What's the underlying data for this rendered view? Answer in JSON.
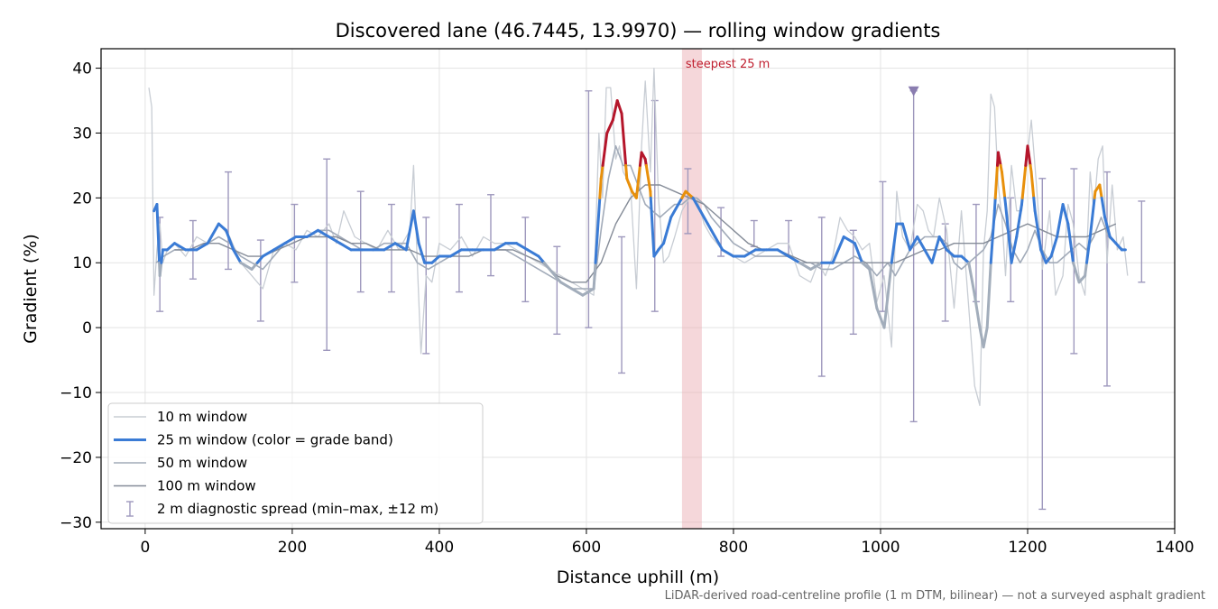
{
  "chart_data": {
    "type": "line",
    "title": "Discovered lane (46.7445, 13.9970) — rolling window gradients",
    "xlabel": "Distance uphill (m)",
    "ylabel": "Gradient (%)",
    "xlim": [
      -60,
      1400
    ],
    "ylim": [
      -31,
      43
    ],
    "xticks": [
      0,
      200,
      400,
      600,
      800,
      1000,
      1200,
      1400
    ],
    "yticks": [
      -30,
      -20,
      -10,
      0,
      10,
      20,
      30,
      40
    ],
    "grid": true,
    "legend_position": "lower-left",
    "footnote": "LiDAR-derived road-centreline profile (1 m DTM, bilinear) — not a surveyed asphalt gradient",
    "steepest_span": {
      "label": "steepest 25 m",
      "x_start": 730,
      "x_end": 757,
      "color": "#e8a7ad"
    },
    "marker": {
      "x": 1045,
      "y": 36.5,
      "color": "#8a7db0"
    },
    "legend": [
      {
        "label": "10 m window",
        "kind": "line",
        "color": "#c8cdd4"
      },
      {
        "label": "25 m window (color = grade band)",
        "kind": "line-bold",
        "color": "#3a7bd5"
      },
      {
        "label": "50 m window",
        "kind": "line",
        "color": "#a2abb9"
      },
      {
        "label": "100 m window",
        "kind": "line",
        "color": "#858c98"
      },
      {
        "label": "2 m diagnostic spread (min–max, ±12 m)",
        "kind": "errorbar",
        "color": "#9e98bd"
      }
    ],
    "grade_bands": [
      {
        "min": -100,
        "max": 10,
        "color": "#a2adbb"
      },
      {
        "min": 10,
        "max": 20,
        "color": "#3a7bd5"
      },
      {
        "min": 20,
        "max": 25,
        "color": "#e8900b"
      },
      {
        "min": 25,
        "max": 100,
        "color": "#b5162b"
      }
    ],
    "series": [
      {
        "name": "10 m window",
        "color": "#c8cdd4",
        "width": 1.3,
        "x": [
          5,
          9,
          12,
          16,
          20,
          24,
          30,
          40,
          55,
          70,
          85,
          100,
          115,
          130,
          145,
          160,
          175,
          190,
          205,
          220,
          235,
          250,
          260,
          270,
          285,
          300,
          315,
          330,
          345,
          360,
          365,
          370,
          375,
          382,
          390,
          400,
          415,
          430,
          445,
          460,
          475,
          490,
          505,
          520,
          535,
          550,
          565,
          580,
          595,
          610,
          617,
          622,
          627,
          633,
          640,
          645,
          650,
          660,
          668,
          675,
          680,
          687,
          692,
          698,
          705,
          712,
          720,
          730,
          740,
          750,
          760,
          770,
          785,
          800,
          815,
          830,
          845,
          860,
          875,
          890,
          905,
          915,
          925,
          935,
          945,
          955,
          965,
          975,
          985,
          995,
          1005,
          1015,
          1022,
          1030,
          1040,
          1050,
          1058,
          1065,
          1072,
          1080,
          1090,
          1100,
          1110,
          1120,
          1128,
          1135,
          1140,
          1145,
          1150,
          1155,
          1160,
          1165,
          1170,
          1178,
          1185,
          1192,
          1200,
          1205,
          1212,
          1220,
          1230,
          1238,
          1248,
          1255,
          1262,
          1270,
          1278,
          1285,
          1290,
          1296,
          1302,
          1308,
          1315,
          1322,
          1330,
          1336
        ],
        "y": [
          37,
          34,
          5,
          12,
          16,
          10,
          12,
          13,
          11,
          14,
          13,
          16,
          14,
          10,
          8,
          6,
          12,
          13,
          12,
          15,
          14,
          16,
          13,
          18,
          14,
          13,
          12,
          15,
          12,
          15,
          25,
          10,
          -4,
          8,
          7,
          13,
          12,
          14,
          11,
          14,
          13,
          13,
          12,
          11,
          10,
          9,
          8,
          7,
          6,
          5,
          30,
          20,
          37,
          37,
          26,
          28,
          24,
          22,
          6,
          28,
          38,
          24,
          40,
          20,
          10,
          11,
          14,
          18,
          20,
          20,
          16,
          14,
          12,
          11,
          10,
          11,
          12,
          13,
          13,
          8,
          7,
          10,
          8,
          11,
          17,
          15,
          14,
          12,
          13,
          4,
          8,
          -3,
          21,
          14,
          12,
          19,
          18,
          15,
          14,
          20,
          15,
          3,
          18,
          3,
          -9,
          -12,
          12,
          18,
          36,
          34,
          22,
          17,
          8,
          25,
          18,
          18,
          27,
          32,
          22,
          9,
          18,
          5,
          8,
          19,
          16,
          8,
          5,
          24,
          18,
          26,
          28,
          10,
          22,
          12,
          14,
          8
        ]
      },
      {
        "name": "50 m window",
        "color": "#a2abb9",
        "width": 1.6,
        "x": [
          15,
          25,
          40,
          55,
          70,
          85,
          100,
          115,
          130,
          145,
          160,
          175,
          190,
          205,
          220,
          235,
          250,
          265,
          280,
          295,
          310,
          325,
          340,
          355,
          370,
          385,
          400,
          415,
          430,
          445,
          460,
          475,
          490,
          505,
          520,
          535,
          550,
          565,
          580,
          595,
          610,
          620,
          630,
          640,
          650,
          660,
          670,
          680,
          690,
          700,
          710,
          720,
          730,
          740,
          750,
          760,
          770,
          785,
          800,
          815,
          830,
          845,
          860,
          875,
          890,
          905,
          920,
          935,
          950,
          965,
          980,
          995,
          1010,
          1020,
          1030,
          1040,
          1050,
          1060,
          1070,
          1080,
          1090,
          1100,
          1110,
          1120,
          1130,
          1140,
          1150,
          1160,
          1170,
          1180,
          1190,
          1200,
          1210,
          1220,
          1230,
          1240,
          1250,
          1260,
          1270,
          1280,
          1290,
          1300,
          1310,
          1320,
          1330
        ],
        "y": [
          10,
          11,
          12,
          12,
          12,
          13,
          14,
          13,
          11,
          10,
          9,
          11,
          13,
          14,
          14,
          15,
          15,
          14,
          13,
          12,
          12,
          13,
          13,
          13,
          10,
          9,
          10,
          11,
          12,
          12,
          12,
          12,
          12,
          11,
          10,
          9,
          8,
          7,
          6,
          6,
          6,
          15,
          23,
          28,
          25,
          25,
          22,
          19,
          18,
          17,
          18,
          19,
          19,
          20,
          20,
          19,
          17,
          15,
          13,
          12,
          11,
          11,
          11,
          11,
          10,
          10,
          9,
          9,
          10,
          11,
          10,
          8,
          10,
          8,
          10,
          12,
          13,
          14,
          14,
          14,
          13,
          10,
          9,
          10,
          11,
          12,
          14,
          19,
          16,
          12,
          10,
          12,
          15,
          12,
          10,
          10,
          11,
          12,
          13,
          12,
          14,
          17,
          14,
          13,
          12
        ]
      },
      {
        "name": "100 m window",
        "color": "#858c98",
        "width": 1.4,
        "x": [
          40,
          60,
          80,
          100,
          120,
          140,
          160,
          180,
          200,
          220,
          240,
          260,
          280,
          300,
          320,
          340,
          360,
          380,
          400,
          420,
          440,
          460,
          480,
          500,
          520,
          540,
          560,
          580,
          600,
          620,
          640,
          660,
          680,
          700,
          720,
          740,
          760,
          780,
          800,
          820,
          840,
          860,
          880,
          900,
          920,
          940,
          960,
          980,
          1000,
          1020,
          1040,
          1060,
          1080,
          1100,
          1120,
          1140,
          1160,
          1180,
          1200,
          1220,
          1240,
          1260,
          1280,
          1300,
          1320
        ],
        "y": [
          12,
          12,
          13,
          13,
          12,
          11,
          11,
          12,
          13,
          14,
          14,
          14,
          13,
          13,
          12,
          12,
          12,
          11,
          11,
          11,
          11,
          12,
          12,
          12,
          11,
          10,
          8,
          7,
          7,
          10,
          16,
          20,
          22,
          22,
          21,
          20,
          19,
          17,
          15,
          13,
          12,
          12,
          11,
          10,
          10,
          10,
          10,
          10,
          10,
          10,
          11,
          12,
          12,
          13,
          13,
          13,
          14,
          15,
          16,
          15,
          14,
          14,
          14,
          15,
          16
        ]
      },
      {
        "name": "25 m window (color = grade band)",
        "color": "#3a7bd5",
        "width": 3,
        "banded": true,
        "x": [
          12,
          16,
          20,
          24,
          30,
          40,
          55,
          70,
          85,
          100,
          110,
          120,
          130,
          145,
          160,
          175,
          190,
          205,
          220,
          235,
          250,
          265,
          280,
          295,
          310,
          325,
          340,
          355,
          365,
          372,
          380,
          390,
          400,
          415,
          430,
          445,
          460,
          475,
          490,
          505,
          520,
          535,
          550,
          565,
          580,
          595,
          610,
          620,
          628,
          636,
          642,
          648,
          655,
          662,
          668,
          675,
          680,
          687,
          692,
          698,
          705,
          715,
          725,
          735,
          745,
          755,
          765,
          775,
          785,
          800,
          815,
          830,
          845,
          860,
          875,
          890,
          905,
          920,
          935,
          950,
          965,
          975,
          985,
          995,
          1005,
          1015,
          1022,
          1030,
          1040,
          1050,
          1060,
          1070,
          1080,
          1090,
          1100,
          1110,
          1120,
          1128,
          1135,
          1140,
          1145,
          1150,
          1155,
          1160,
          1165,
          1170,
          1178,
          1185,
          1192,
          1200,
          1205,
          1210,
          1218,
          1225,
          1232,
          1240,
          1248,
          1255,
          1262,
          1270,
          1278,
          1285,
          1292,
          1298,
          1305,
          1312,
          1320,
          1328,
          1333
        ],
        "y": [
          18,
          19,
          8,
          12,
          12,
          13,
          12,
          12,
          13,
          16,
          15,
          12,
          10,
          9,
          11,
          12,
          13,
          14,
          14,
          15,
          14,
          13,
          12,
          12,
          12,
          12,
          13,
          12,
          18,
          13,
          10,
          10,
          11,
          11,
          12,
          12,
          12,
          12,
          13,
          13,
          12,
          11,
          9,
          7,
          6,
          5,
          6,
          23,
          30,
          32,
          35,
          33,
          23,
          21,
          20,
          27,
          26,
          21,
          11,
          12,
          13,
          17,
          19,
          21,
          20,
          18,
          16,
          14,
          12,
          11,
          11,
          12,
          12,
          12,
          11,
          10,
          9,
          10,
          10,
          14,
          13,
          10,
          9,
          3,
          0,
          10,
          16,
          16,
          12,
          14,
          12,
          10,
          14,
          12,
          11,
          11,
          10,
          5,
          0,
          -3,
          0,
          10,
          18,
          27,
          24,
          19,
          10,
          14,
          19,
          28,
          24,
          18,
          12,
          10,
          11,
          14,
          19,
          16,
          10,
          7,
          8,
          14,
          21,
          22,
          17,
          14,
          13,
          12,
          12
        ]
      }
    ],
    "error_bars": [
      {
        "x": 20,
        "min": 2.5,
        "max": 17
      },
      {
        "x": 65,
        "min": 7.5,
        "max": 16.5
      },
      {
        "x": 113,
        "min": 9,
        "max": 24
      },
      {
        "x": 157,
        "min": 1,
        "max": 13.5
      },
      {
        "x": 203,
        "min": 7,
        "max": 19
      },
      {
        "x": 247,
        "min": -3.5,
        "max": 26
      },
      {
        "x": 293,
        "min": 5.5,
        "max": 21
      },
      {
        "x": 335,
        "min": 5.5,
        "max": 19
      },
      {
        "x": 382,
        "min": -4,
        "max": 17
      },
      {
        "x": 427,
        "min": 5.5,
        "max": 19
      },
      {
        "x": 470,
        "min": 8,
        "max": 20.5
      },
      {
        "x": 517,
        "min": 4,
        "max": 17
      },
      {
        "x": 560,
        "min": -1,
        "max": 12.5
      },
      {
        "x": 603,
        "min": 0,
        "max": 36.5
      },
      {
        "x": 648,
        "min": -7,
        "max": 14
      },
      {
        "x": 693,
        "min": 2.5,
        "max": 35
      },
      {
        "x": 738,
        "min": 14.5,
        "max": 24.5
      },
      {
        "x": 783,
        "min": 11,
        "max": 18.5
      },
      {
        "x": 828,
        "min": 12.5,
        "max": 16.5
      },
      {
        "x": 875,
        "min": 11,
        "max": 16.5
      },
      {
        "x": 920,
        "min": -7.5,
        "max": 17
      },
      {
        "x": 963,
        "min": -1,
        "max": 15
      },
      {
        "x": 1003,
        "min": 2.5,
        "max": 22.5
      },
      {
        "x": 1045,
        "min": -14.5,
        "max": 36.5
      },
      {
        "x": 1088,
        "min": 1,
        "max": 16
      },
      {
        "x": 1130,
        "min": 4,
        "max": 19
      },
      {
        "x": 1177,
        "min": 4,
        "max": 20
      },
      {
        "x": 1220,
        "min": -28,
        "max": 23
      },
      {
        "x": 1263,
        "min": -4,
        "max": 24.5
      },
      {
        "x": 1308,
        "min": -9,
        "max": 24
      },
      {
        "x": 1355,
        "min": 7,
        "max": 19.5
      }
    ]
  }
}
